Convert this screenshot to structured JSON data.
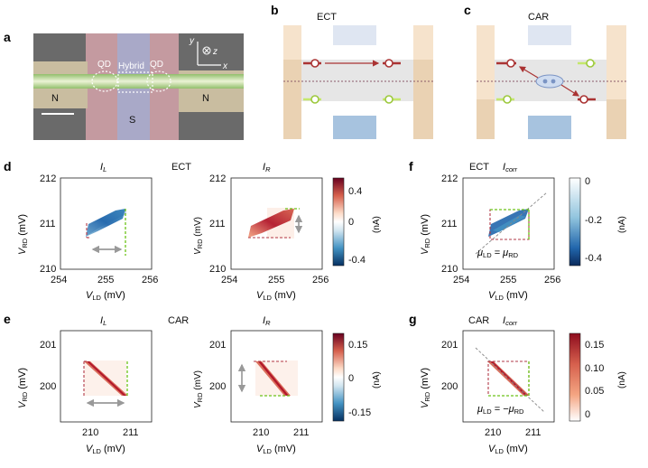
{
  "panel_letters": {
    "a": "a",
    "b": "b",
    "c": "c",
    "d": "d",
    "e": "e",
    "f": "f",
    "g": "g"
  },
  "device": {
    "label_qd_left": "QD",
    "label_hybrid": "Hybrid",
    "label_qd_right": "QD",
    "label_n_left": "N",
    "label_n_right": "N",
    "label_s": "S",
    "axis_y": "y",
    "axis_z": "z",
    "axis_x": "x"
  },
  "schematics": {
    "b_title": "ECT",
    "c_title": "CAR"
  },
  "row_d": {
    "left_title": "I",
    "left_title_sub": "L",
    "center_label": "ECT",
    "right_title": "I",
    "right_title_sub": "R",
    "y_ticks": [
      "212",
      "211",
      "210"
    ],
    "x_ticks": [
      "254",
      "255",
      "256"
    ],
    "ylabel": "V",
    "ylabel_sub": "RD",
    "ylabel_unit": " (mV)",
    "xlabel": "V",
    "xlabel_sub": "LD",
    "xlabel_unit": " (mV)",
    "cbar_ticks": [
      "0.4",
      "0",
      "-0.4"
    ],
    "cbar_unit": "(nA)"
  },
  "row_f": {
    "center_label": "ECT",
    "title": "I",
    "title_sub": "corr",
    "annotation": "μ",
    "annotation_sub1": "LD",
    "annotation_mid": " = μ",
    "annotation_sub2": "RD",
    "cbar_ticks": [
      "0",
      "-0.2",
      "-0.4"
    ],
    "cbar_unit": "(nA)"
  },
  "row_e": {
    "left_title": "I",
    "left_title_sub": "L",
    "center_label": "CAR",
    "right_title": "I",
    "right_title_sub": "R",
    "y_ticks": [
      "201",
      "200"
    ],
    "x_ticks": [
      "210",
      "211"
    ],
    "ylabel": "V",
    "ylabel_sub": "RD",
    "ylabel_unit": " (mV)",
    "xlabel": "V",
    "xlabel_sub": "LD",
    "xlabel_unit": " (mV)",
    "cbar_ticks": [
      "0.15",
      "0",
      "-0.15"
    ],
    "cbar_unit": "(nA)"
  },
  "row_g": {
    "center_label": "CAR",
    "title": "I",
    "title_sub": "corr",
    "annotation": "μ",
    "annotation_sub1": "LD",
    "annotation_mid": " = −μ",
    "annotation_sub2": "RD",
    "cbar_ticks": [
      "0.15",
      "0.10",
      "0.05",
      "0"
    ],
    "cbar_unit": "(nA)"
  },
  "colors": {
    "red": "#b2182b",
    "blue": "#2166ac",
    "green_dash": "#6cc218",
    "red_dash": "#b23a48"
  }
}
